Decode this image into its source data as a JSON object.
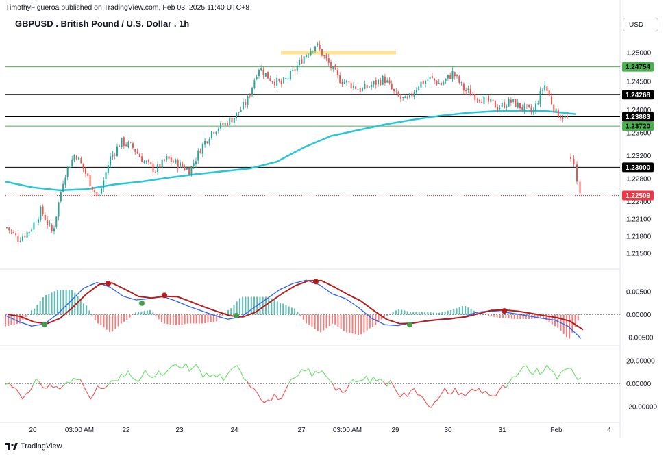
{
  "header": {
    "publisher": "TimothyFigueroa published on TradingView.com, Feb 03, 2025 11:40 UTC+8",
    "title": "GBPUSD . British Pound / U.S. Dollar . 1h",
    "currency": "USD"
  },
  "footer": {
    "brand": "TradingView"
  },
  "colors": {
    "up": "#26a69a",
    "down": "#ef5350",
    "ma": "#26c6da",
    "green_line": "#4caf50",
    "black_line": "#000000",
    "red_dotted": "#f23645",
    "macd": "#2962ff",
    "signal_up": "#43a047",
    "signal_down": "#b71c1c",
    "osc_up": "#66e066",
    "osc_down": "#f05050",
    "zone": "#ffe082"
  },
  "chart_data": [
    {
      "type": "candlestick",
      "panel": "price",
      "y_ticks": [
        "1.25000",
        "1.24500",
        "1.24000",
        "1.23600",
        "1.23200",
        "1.22800",
        "1.22400",
        "1.22100",
        "1.21800",
        "1.21500"
      ],
      "y_tick_values": [
        1.25,
        1.245,
        1.24,
        1.236,
        1.232,
        1.228,
        1.224,
        1.221,
        1.218,
        1.215
      ],
      "x_ticks": [
        "20",
        "03:00 AM",
        "22",
        "23",
        "24",
        "27",
        "03:00 AM",
        "29",
        "30",
        "31",
        "Feb",
        "4"
      ],
      "levels": [
        {
          "label": "1.24754",
          "value": 1.24754,
          "style": "green"
        },
        {
          "label": "1.24268",
          "value": 1.24268,
          "style": "black"
        },
        {
          "label": "1.23883",
          "value": 1.23883,
          "style": "black"
        },
        {
          "label": "1.23720",
          "value": 1.2372,
          "style": "green"
        },
        {
          "label": "1.23000",
          "value": 1.23,
          "style": "black"
        },
        {
          "label": "1.22509",
          "value": 1.22509,
          "style": "current"
        }
      ],
      "resistance_zone": [
        1.2497,
        1.2503
      ],
      "close_path": [
        1.2195,
        1.2175,
        1.219,
        1.2225,
        1.2185,
        1.2285,
        1.2325,
        1.2285,
        1.2245,
        1.2315,
        1.2345,
        1.2335,
        1.231,
        1.2295,
        1.2315,
        1.2305,
        1.2295,
        1.2335,
        1.2365,
        1.2375,
        1.239,
        1.2415,
        1.2475,
        1.2455,
        1.2445,
        1.2465,
        1.2495,
        1.2515,
        1.2485,
        1.2455,
        1.2445,
        1.2435,
        1.2445,
        1.2455,
        1.2425,
        1.2415,
        1.2445,
        1.2455,
        1.2445,
        1.2465,
        1.2435,
        1.2425,
        1.2415,
        1.2405,
        1.2415,
        1.2405,
        1.2395,
        1.2445,
        1.2395,
        1.2385
      ],
      "gap_close_path": [
        1.2315,
        1.2305,
        1.2275,
        1.2255
      ],
      "ma_path": [
        1.2275,
        1.2265,
        1.226,
        1.2262,
        1.227,
        1.2275,
        1.2282,
        1.2288,
        1.2293,
        1.2298,
        1.231,
        1.2335,
        1.2355,
        1.2365,
        1.2375,
        1.2383,
        1.239,
        1.2395,
        1.2398,
        1.2399,
        1.2398,
        1.2393
      ]
    },
    {
      "type": "line",
      "panel": "macd",
      "y_ticks": [
        "0.00500",
        "0.00000",
        "-0.00500"
      ],
      "y_tick_values": [
        0.005,
        0.0,
        -0.005
      ]
    },
    {
      "type": "line",
      "panel": "oscillator",
      "y_ticks": [
        "20.00000",
        "0.00000",
        "-20.00000"
      ],
      "y_tick_values": [
        20,
        0,
        -20
      ]
    }
  ]
}
